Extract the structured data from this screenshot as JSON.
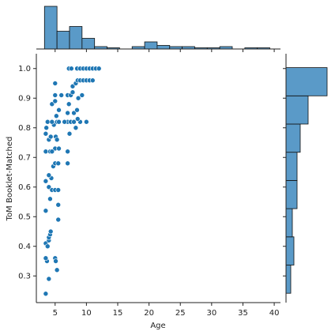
{
  "chart_data": [
    {
      "type": "scatter",
      "x_label": "Age",
      "y_label": "ToM Booklet-Matched",
      "color": "#1f77b4",
      "x": [
        3.5,
        4,
        3.7,
        3.5,
        3.5,
        4,
        4,
        4.2,
        4.3,
        3.8,
        5.3,
        5,
        5.1,
        4.4,
        3.5,
        3.5,
        4,
        4.2,
        4.5,
        5,
        5.5,
        5.5,
        5.5,
        4.7,
        4,
        5,
        5.5,
        5,
        5.6,
        3.5,
        4.2,
        4.5,
        3.5,
        4,
        4.3,
        4.8,
        3.8,
        3.6,
        4.5,
        5.3,
        5.6,
        5.1,
        5.3,
        5.2,
        5.6,
        4.5,
        5,
        5,
        6,
        5,
        7,
        7.2,
        7.5,
        7.8,
        7,
        8,
        8.5,
        7.3,
        7,
        7,
        7,
        7.5,
        8,
        9,
        10,
        8.3,
        8.6,
        7.8,
        8.3,
        8.6,
        9,
        9.5,
        10,
        10.5,
        11,
        7.2,
        7.6,
        8.5,
        9,
        9.5,
        10,
        10.5,
        11,
        11.5,
        12,
        8.7,
        9.3,
        6.5
      ],
      "y": [
        0.24,
        0.29,
        0.35,
        0.36,
        0.41,
        0.42,
        0.43,
        0.44,
        0.45,
        0.4,
        0.32,
        0.36,
        0.35,
        0.63,
        0.52,
        0.62,
        0.6,
        0.56,
        0.59,
        0.59,
        0.59,
        0.54,
        0.49,
        0.67,
        0.64,
        0.68,
        0.68,
        0.73,
        0.73,
        0.72,
        0.72,
        0.72,
        0.78,
        0.76,
        0.77,
        0.81,
        0.82,
        0.8,
        0.82,
        0.82,
        0.82,
        0.77,
        0.76,
        0.84,
        0.86,
        0.88,
        0.89,
        0.91,
        0.91,
        0.95,
        0.91,
        0.88,
        0.91,
        0.92,
        0.85,
        0.85,
        0.86,
        0.78,
        0.72,
        0.68,
        0.82,
        0.82,
        0.82,
        0.82,
        0.82,
        0.8,
        0.83,
        0.94,
        0.95,
        0.96,
        0.96,
        0.96,
        0.96,
        0.96,
        0.96,
        1,
        1,
        1,
        1,
        1,
        1,
        1,
        1,
        1,
        1,
        0.9,
        0.91,
        0.82
      ],
      "xlim": [
        2,
        41
      ],
      "ylim": [
        0.21,
        1.05
      ],
      "xticks": [
        5,
        10,
        15,
        20,
        25,
        30,
        35,
        40
      ],
      "yticks": [
        0.3,
        0.4,
        0.5,
        0.6,
        0.7,
        0.8,
        0.9,
        {
          "value": 1,
          "label": "1.0"
        }
      ]
    },
    {
      "type": "histogram",
      "orientation": "vertical",
      "color": "#5a9ac8",
      "bins": [
        3.3,
        5.3,
        7.3,
        9.3,
        11.3,
        13.3,
        15.3,
        17.3,
        19.3,
        21.3,
        23.3,
        25.3,
        27.3,
        29.3,
        31.3,
        33.3,
        35.3,
        37.3,
        39.3
      ],
      "values": [
        36,
        15,
        19,
        9,
        2,
        1,
        0,
        2,
        6,
        3,
        2,
        2,
        1,
        1,
        2,
        0,
        1,
        1
      ],
      "xlim": [
        2,
        41
      ],
      "ylim": [
        0,
        38
      ]
    },
    {
      "type": "histogram",
      "orientation": "horizontal",
      "color": "#5a9ac8",
      "bins": [
        0.2415,
        0.3367,
        0.4319,
        0.5271,
        0.6223,
        0.7175,
        0.8127,
        0.9079,
        1.0031
      ],
      "values": [
        3,
        5,
        4,
        7,
        7,
        9,
        14,
        26
      ],
      "xlim": [
        0,
        29
      ],
      "ylim": [
        0.21,
        1.05
      ]
    }
  ]
}
